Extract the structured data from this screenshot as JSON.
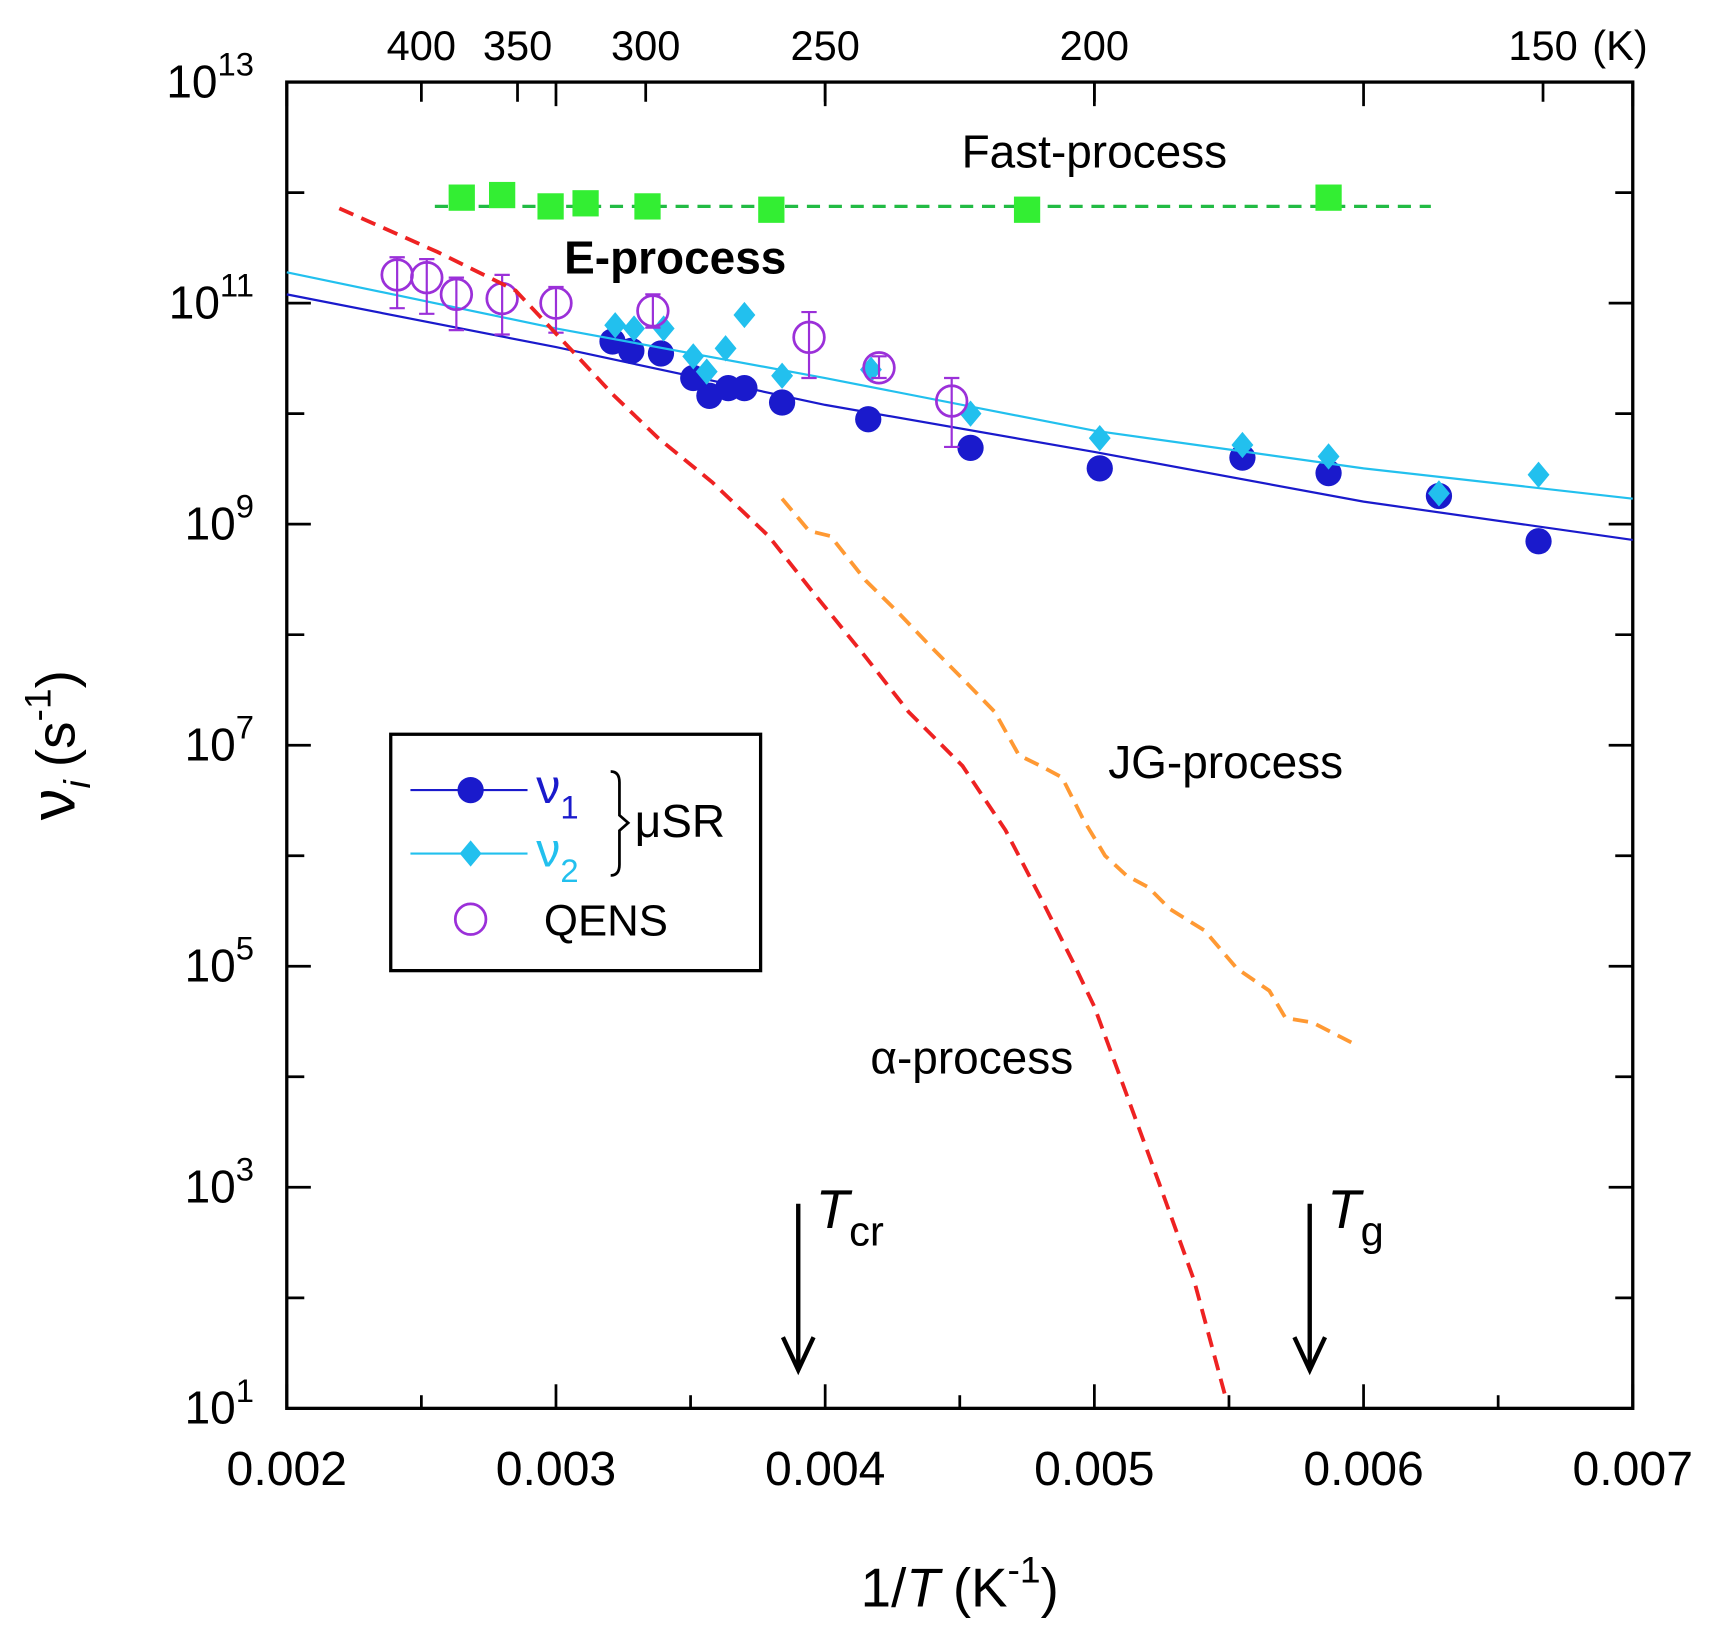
{
  "chart_data": {
    "type": "scatter",
    "log_y": true,
    "xlabel": {
      "pre": "1/",
      "var": "T",
      "unit": "(K",
      "sup": "-1",
      "close": ")"
    },
    "ylabel": {
      "symbol": "ν",
      "sub": "i",
      "unit": "(s",
      "sup": "-1",
      "close": ")"
    },
    "xlim": [
      0.002,
      0.007
    ],
    "xticks": [
      0.002,
      0.003,
      0.004,
      0.005,
      0.006,
      0.007
    ],
    "xminor": [
      0.0025,
      0.0035,
      0.0045,
      0.0055,
      0.0065
    ],
    "ylim": [
      10,
      10000000000000
    ],
    "yticks": [
      {
        "value": 10,
        "label": "10^1"
      },
      {
        "value": 1000,
        "label": "10^3"
      },
      {
        "value": 100000,
        "label": "10^5"
      },
      {
        "value": 10000000,
        "label": "10^7"
      },
      {
        "value": 1000000000,
        "label": "10^9"
      },
      {
        "value": 100000000000,
        "label": "10^11"
      },
      {
        "value": 10000000000000,
        "label": "10^13"
      }
    ],
    "yminor": [
      100,
      10000,
      1000000,
      100000000,
      10000000000,
      1000000000000
    ],
    "top_ticks": [
      400,
      350,
      300,
      250,
      200,
      150
    ],
    "top_unit": "(K)",
    "series": [
      {
        "name": "ν",
        "sub": "1",
        "color": "#1a1acc",
        "marker": "circle",
        "x": [
          0.00321,
          0.00328,
          0.00339,
          0.00351,
          0.00357,
          0.00364,
          0.0037,
          0.00384,
          0.00416,
          0.00454,
          0.00502,
          0.00555,
          0.00587,
          0.00628,
          0.00665
        ],
        "values": [
          45000000000,
          37000000000,
          35000000000,
          21000000000,
          14500000000,
          17000000000,
          17000000000,
          12600000000,
          8900000000,
          4900000000,
          3200000000,
          4000000000,
          2900000000,
          1800000000,
          700000000
        ],
        "fit_x": [
          0.002,
          0.003,
          0.004,
          0.005,
          0.006,
          0.007
        ],
        "fit": [
          120000000000,
          40000000000,
          12000000000,
          4500000000,
          1600000000,
          720000000
        ]
      },
      {
        "name": "ν",
        "sub": "2",
        "color": "#22c0ee",
        "marker": "diamond",
        "x": [
          0.00322,
          0.00329,
          0.0034,
          0.00351,
          0.00356,
          0.00363,
          0.0037,
          0.00384,
          0.00417,
          0.00454,
          0.00502,
          0.00555,
          0.00587,
          0.00628,
          0.00665
        ],
        "values": [
          63000000000,
          59000000000,
          59000000000,
          33000000000,
          24000000000,
          39000000000,
          78000000000,
          22000000000,
          25000000000,
          10000000000,
          6000000000,
          5200000000,
          4100000000,
          1900000000,
          2800000000
        ],
        "fit_x": [
          0.002,
          0.003,
          0.004,
          0.005,
          0.006,
          0.007
        ],
        "fit": [
          190000000000,
          59000000000,
          21000000000,
          7000000000,
          3200000000,
          1700000000
        ]
      },
      {
        "name": "QENS",
        "color": "#9b30d9",
        "marker": "open-circle",
        "x": [
          0.00241,
          0.00252,
          0.00263,
          0.0028,
          0.003,
          0.00336,
          0.00394,
          0.0042,
          0.00447
        ],
        "values": [
          180000000000,
          170000000000,
          120000000000,
          110000000000,
          100000000000,
          85000000000,
          49000000000,
          26000000000,
          13000000000
        ],
        "lower": [
          90000000000,
          80000000000,
          57000000000,
          52000000000,
          54000000000,
          60000000000,
          21000000000,
          21000000000,
          5000000000
        ],
        "upper": [
          260000000000,
          250000000000,
          170000000000,
          180000000000,
          140000000000,
          120000000000,
          83000000000,
          33000000000,
          21000000000
        ]
      },
      {
        "name": "Fast-process",
        "color": "#33ee33",
        "line_color": "#22bb44",
        "marker": "square",
        "x": [
          0.00265,
          0.0028,
          0.00298,
          0.00311,
          0.00334,
          0.0038,
          0.00475,
          0.00587
        ],
        "values": [
          900000000000,
          950000000000,
          750000000000,
          800000000000,
          750000000000,
          700000000000,
          700000000000,
          900000000000
        ],
        "fit_x": [
          0.00255,
          0.00625
        ],
        "fit": [
          750000000000,
          750000000000
        ]
      },
      {
        "name": "α-process",
        "color": "#ee2222",
        "marker": "none",
        "x": [
          0.002195,
          0.00256,
          0.00285,
          0.00306,
          0.00321,
          0.00338,
          0.00358,
          0.00379,
          0.00395,
          0.00415,
          0.00431,
          0.00451,
          0.00467,
          0.0048,
          0.00492,
          0.005,
          0.00512,
          0.00524,
          0.00537,
          0.00549
        ],
        "values": [
          720000000000,
          290000000000,
          130000000000,
          37000000000,
          15000000000,
          6000000000,
          2400000000,
          780000000,
          250000000,
          63000000,
          20000000,
          6500000,
          1700000,
          420000,
          110000,
          43000,
          6900,
          1100,
          145,
          12
        ]
      },
      {
        "name": "JG-process",
        "color": "#ff9933",
        "marker": "none",
        "x": [
          0.00384,
          0.00394,
          0.00402,
          0.00415,
          0.00427,
          0.00439,
          0.00451,
          0.00463,
          0.00472,
          0.0048,
          0.00488,
          0.00496,
          0.00504,
          0.00512,
          0.0052,
          0.00528,
          0.00541,
          0.00553,
          0.00565,
          0.00571,
          0.00581,
          0.00598
        ],
        "values": [
          1700000000,
          870000000,
          780000000,
          310000000,
          160000000,
          79000000,
          40000000,
          20000000,
          8100000,
          6500000,
          5100000,
          2100000,
          1000000,
          660000,
          520000,
          330000,
          210000,
          95000,
          60000,
          34000,
          31000,
          19000
        ]
      }
    ],
    "legend_group": "μSR",
    "annotations": [
      {
        "text": "E-process",
        "series": 2
      },
      {
        "text": "Fast-process",
        "series": 3
      },
      {
        "text": "JG-process",
        "series": 5
      },
      {
        "text": "α-process",
        "series": 4
      }
    ],
    "arrows": [
      {
        "text": "T",
        "sub": "cr",
        "x": 0.0039
      },
      {
        "text": "T",
        "sub": "g",
        "x": 0.0058
      }
    ]
  }
}
